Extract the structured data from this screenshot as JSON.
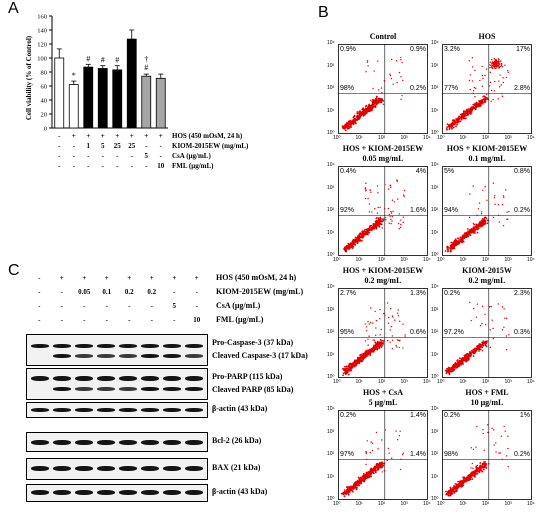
{
  "panel_labels": {
    "a": "A",
    "b": "B",
    "c": "C"
  },
  "panel_a": {
    "y_axis_label": "Cell viability (% of Control)",
    "y_ticks": [
      "0",
      "20",
      "40",
      "60",
      "80",
      "100",
      "120",
      "140",
      "160"
    ],
    "condition_labels": [
      "HOS  (450 mOsM, 24 h)",
      "KIOM-2015EW (mg/mL)",
      "CsA (μg/mL)",
      "FML (μg/mL)"
    ],
    "condition_rows": [
      [
        "-",
        "+",
        "+",
        "+",
        "+",
        "+",
        "+",
        "+"
      ],
      [
        "-",
        "-",
        "1",
        "5",
        "25",
        "25",
        "-",
        "-"
      ],
      [
        "-",
        "-",
        "-",
        "-",
        "-",
        "-",
        "5",
        "-"
      ],
      [
        "-",
        "-",
        "-",
        "-",
        "-",
        "-",
        "-",
        "10"
      ]
    ],
    "significance_marks": [
      "",
      "*",
      "#",
      "#",
      "#",
      "",
      "#",
      ""
    ],
    "dagger_mark": "†",
    "colors": {
      "white": "#ffffff",
      "black": "#000000",
      "gray": "#a6a6a6"
    }
  },
  "chart_data": {
    "type": "bar",
    "categories": [
      "1",
      "2",
      "3",
      "4",
      "5",
      "6",
      "7",
      "8"
    ],
    "values": [
      100,
      62,
      87,
      85,
      83,
      127,
      74,
      71
    ],
    "errors": [
      13,
      5,
      4,
      4,
      6,
      13,
      3,
      6
    ],
    "bar_colors": [
      "#ffffff",
      "#ffffff",
      "#000000",
      "#000000",
      "#000000",
      "#000000",
      "#a6a6a6",
      "#a6a6a6"
    ],
    "ylabel": "Cell viability (% of Control)",
    "ylim": [
      0,
      160
    ]
  },
  "panel_b": {
    "plots": [
      {
        "title": [
          "Control"
        ],
        "q": [
          "0.9%",
          "0.9%",
          "98%",
          "0.2%"
        ],
        "density": "control"
      },
      {
        "title": [
          "HOS"
        ],
        "q": [
          "3.2%",
          "17%",
          "77%",
          "2.8%"
        ],
        "density": "hos"
      },
      {
        "title": [
          "HOS + KIOM-2015EW",
          "0.05 mg/mL"
        ],
        "q": [
          "0.4%",
          "4%",
          "92%",
          "1.6%"
        ],
        "density": "mid"
      },
      {
        "title": [
          "HOS + KIOM-2015EW",
          "0.1 mg/mL"
        ],
        "q": [
          "5%",
          "0.8%",
          "94%",
          "0.2%"
        ],
        "density": "low"
      },
      {
        "title": [
          "HOS + KIOM-2015EW",
          "0.2 mg/mL"
        ],
        "q": [
          "2.7%",
          "1.3%",
          "95%",
          "0.6%"
        ],
        "density": "mid"
      },
      {
        "title": [
          "KIOM-2015W",
          "0.2 mg/mL"
        ],
        "q": [
          "0.2%",
          "2.3%",
          "97.2%",
          "0.3%"
        ],
        "density": "low"
      },
      {
        "title": [
          "HOS + CsA",
          "5 μg/mL"
        ],
        "q": [
          "0.2%",
          "1.4%",
          "97%",
          "1.4%"
        ],
        "density": "low"
      },
      {
        "title": [
          "HOS + FML",
          "10 μg/mL"
        ],
        "q": [
          "0.2%",
          "1%",
          "98%",
          "0.2%"
        ],
        "density": "low"
      }
    ],
    "axis_ticks": [
      "10⁰",
      "10¹",
      "10²",
      "10³",
      "10⁴"
    ],
    "dot_color": "#e00000"
  },
  "panel_c": {
    "condition_labels": [
      "HOS (450 mOsM, 24 h)",
      "KIOM-2015EW (mg/mL)",
      "CsA  (μg/mL)",
      "FML (μg/mL)"
    ],
    "condition_rows": [
      [
        "-",
        "+",
        "+",
        "+",
        "+",
        "+",
        "+",
        "+"
      ],
      [
        "-",
        "-",
        "0.05",
        "0.1",
        "0.2",
        "0.2",
        "-",
        "-"
      ],
      [
        "-",
        "-",
        "-",
        "-",
        "-",
        "-",
        "5",
        "-"
      ],
      [
        "-",
        "-",
        "-",
        "-",
        "-",
        "-",
        "-",
        "10"
      ]
    ],
    "blot_labels": [
      [
        "Pro-Caspase-3 (37 kDa)",
        "Cleaved Caspase-3 (17 kDa)"
      ],
      [
        "Pro-PARP (115 kDa)",
        "Cleaved PARP (85 kDa)"
      ],
      [
        "β-actin (43 kDa)"
      ],
      [
        "Bcl-2 (26 kDa)"
      ],
      [
        "BAX (21 kDa)"
      ],
      [
        "β-actin (43 kDa)"
      ]
    ]
  }
}
